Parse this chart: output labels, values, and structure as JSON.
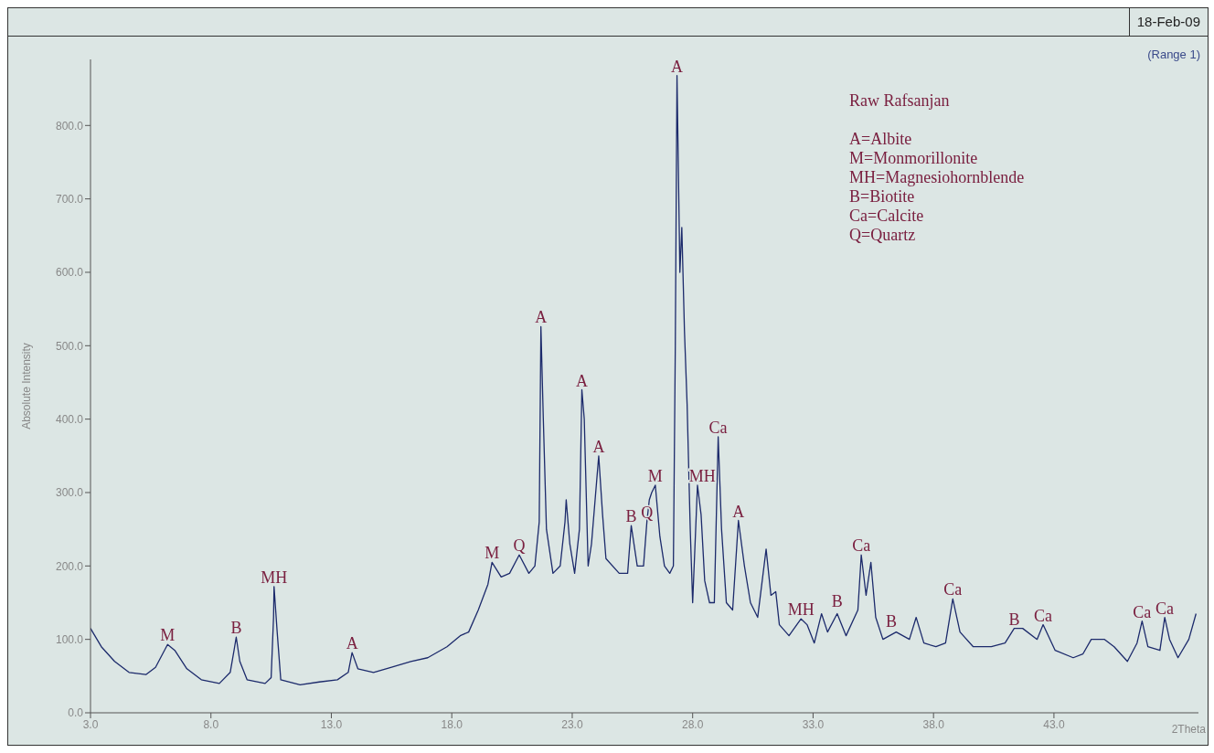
{
  "chart_data": {
    "type": "line",
    "ylabel": "Absolute Intensity",
    "xlabel": "2Theta",
    "x": [
      3.0,
      3.45,
      4.0,
      4.6,
      5.3,
      5.7,
      6.2,
      6.5,
      7.0,
      7.6,
      8.35,
      8.8,
      8.96,
      9.05,
      9.2,
      9.5,
      10.25,
      10.5,
      10.6,
      10.62,
      10.75,
      10.9,
      11.7,
      12.5,
      13.25,
      13.7,
      13.86,
      14.1,
      14.75,
      15.5,
      16.3,
      17.0,
      17.8,
      18.35,
      18.7,
      19.1,
      19.5,
      19.67,
      20.05,
      20.4,
      20.8,
      21.2,
      21.45,
      21.63,
      21.7,
      21.8,
      21.93,
      22.2,
      22.5,
      22.7,
      22.75,
      22.9,
      23.1,
      23.3,
      23.4,
      23.5,
      23.66,
      23.8,
      24.1,
      24.26,
      24.4,
      24.95,
      25.3,
      25.45,
      25.7,
      25.96,
      26.1,
      26.2,
      26.3,
      26.45,
      26.64,
      26.83,
      27.05,
      27.2,
      27.28,
      27.35,
      27.47,
      27.55,
      27.66,
      27.77,
      27.9,
      28.0,
      28.15,
      28.2,
      28.35,
      28.5,
      28.7,
      28.9,
      29.06,
      29.2,
      29.4,
      29.66,
      29.9,
      30.15,
      30.4,
      30.7,
      31.05,
      31.25,
      31.45,
      31.6,
      32.0,
      32.5,
      32.75,
      33.05,
      33.35,
      33.6,
      34.0,
      34.37,
      34.86,
      35.0,
      35.2,
      35.4,
      35.6,
      35.9,
      36.45,
      37.0,
      37.28,
      37.6,
      38.1,
      38.5,
      38.8,
      39.1,
      39.65,
      40.4,
      40.97,
      41.35,
      41.7,
      42.3,
      42.55,
      43.05,
      43.8,
      44.2,
      44.55,
      45.1,
      45.5,
      46.05,
      46.45,
      46.66,
      46.9,
      47.4,
      47.6,
      47.8,
      48.15,
      48.6,
      48.9
    ],
    "series": [
      {
        "color": "#1c2a6b",
        "values": [
          115,
          90,
          70,
          55,
          52,
          62,
          93,
          85,
          60,
          45,
          40,
          55,
          85,
          103,
          70,
          45,
          40,
          48,
          130,
          172,
          110,
          45,
          38,
          42,
          45,
          55,
          82,
          60,
          55,
          62,
          70,
          75,
          90,
          105,
          110,
          140,
          175,
          205,
          185,
          190,
          215,
          190,
          200,
          260,
          526,
          400,
          250,
          190,
          200,
          260,
          290,
          230,
          190,
          250,
          440,
          400,
          200,
          230,
          350,
          270,
          210,
          190,
          190,
          255,
          200,
          200,
          260,
          290,
          300,
          310,
          240,
          200,
          190,
          200,
          500,
          868,
          600,
          661,
          520,
          420,
          250,
          150,
          270,
          310,
          270,
          180,
          150,
          150,
          376,
          250,
          150,
          140,
          262,
          200,
          150,
          130,
          223,
          160,
          165,
          120,
          105,
          128,
          120,
          95,
          135,
          110,
          135,
          105,
          140,
          215,
          160,
          205,
          130,
          100,
          110,
          100,
          130,
          95,
          90,
          95,
          155,
          110,
          90,
          90,
          95,
          115,
          115,
          100,
          120,
          85,
          75,
          80,
          100,
          100,
          90,
          70,
          95,
          125,
          90,
          85,
          130,
          100,
          75,
          100,
          135
        ]
      }
    ],
    "xlim": [
      3,
      49
    ],
    "xticks": [
      {
        "value": 3,
        "label": "3.0"
      },
      {
        "value": 8,
        "label": "8.0"
      },
      {
        "value": 13,
        "label": "13.0"
      },
      {
        "value": 18,
        "label": "18.0"
      },
      {
        "value": 23,
        "label": "23.0"
      },
      {
        "value": 28,
        "label": "28.0"
      },
      {
        "value": 33,
        "label": "33.0"
      },
      {
        "value": 38,
        "label": "38.0"
      },
      {
        "value": 43,
        "label": "43.0"
      }
    ],
    "ylim": [
      0,
      890
    ],
    "yticks": [
      {
        "value": 0,
        "label": "0.0"
      },
      {
        "value": 100,
        "label": "100.0"
      },
      {
        "value": 200,
        "label": "200.0"
      },
      {
        "value": 300,
        "label": "300.0"
      },
      {
        "value": 400,
        "label": "400.0"
      },
      {
        "value": 500,
        "label": "500.0"
      },
      {
        "value": 600,
        "label": "600.0"
      },
      {
        "value": 700,
        "label": "700.0"
      },
      {
        "value": 800,
        "label": "800.0"
      }
    ],
    "grid": false,
    "legend": false,
    "marker": "none",
    "line_style": "solid",
    "annotations": [
      "18-Feb-09",
      "(Range 1)",
      "Raw Rafsanjan",
      "A=Albite",
      "M=Monmorillonite",
      "MH=Magnesiohornblende",
      "B=Biotite",
      "Ca=Calcite",
      "Q=Quartz",
      {
        "text": "M",
        "x": 6.2,
        "y": 93
      },
      {
        "text": "B",
        "x": 9.05,
        "y": 103
      },
      {
        "text": "MH",
        "x": 10.62,
        "y": 172
      },
      {
        "text": "A",
        "x": 13.86,
        "y": 82
      },
      {
        "text": "M",
        "x": 19.67,
        "y": 205
      },
      {
        "text": "Q",
        "x": 20.8,
        "y": 215
      },
      {
        "text": "A",
        "x": 21.7,
        "y": 526
      },
      {
        "text": "A",
        "x": 23.4,
        "y": 440
      },
      {
        "text": "A",
        "x": 24.1,
        "y": 350
      },
      {
        "text": "B",
        "x": 25.45,
        "y": 255
      },
      {
        "text": "Q",
        "x": 26.1,
        "y": 260
      },
      {
        "text": "M",
        "x": 26.45,
        "y": 310
      },
      {
        "text": "A",
        "x": 27.35,
        "y": 868
      },
      {
        "text": "MH",
        "x": 28.4,
        "y": 310
      },
      {
        "text": "Ca",
        "x": 29.06,
        "y": 376
      },
      {
        "text": "A",
        "x": 29.9,
        "y": 262
      },
      {
        "text": "MH",
        "x": 32.5,
        "y": 128
      },
      {
        "text": "B",
        "x": 34.0,
        "y": 140
      },
      {
        "text": "Ca",
        "x": 35.0,
        "y": 215
      },
      {
        "text": "B",
        "x": 36.25,
        "y": 112
      },
      {
        "text": "Ca",
        "x": 38.8,
        "y": 155
      },
      {
        "text": "B",
        "x": 41.35,
        "y": 115
      },
      {
        "text": "Ca",
        "x": 42.55,
        "y": 120
      },
      {
        "text": "Ca",
        "x": 46.66,
        "y": 125
      },
      {
        "text": "Ca",
        "x": 47.6,
        "y": 130
      }
    ]
  }
}
